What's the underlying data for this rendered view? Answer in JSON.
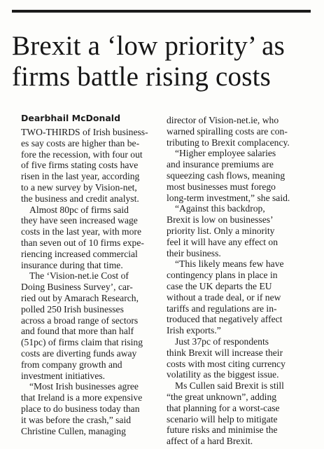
{
  "headline": "Brexit a ‘low priority’ as firms battle rising costs",
  "byline": "Dearbhail McDonald",
  "left_paragraphs": [
    "TWO-THIRDS of Irish business-\nes say costs are higher than be-\nfore the recession, with four out\nof five firms stating costs have\nrisen in the last year, according\nto a new survey by Vision-net,\nthe business and credit analyst.",
    "Almost 80pc of firms said\nthey have seen increased wage\ncosts in the last year, with more\nthan seven out of 10 firms expe-\nriencing increased commercial\ninsurance during that time.",
    "The ‘Vision-net.ie Cost of\nDoing Business Survey’, car-\nried out by Amarach Research,\npolled 250 Irish businesses\nacross a broad range of sectors\nand found that more than half\n(51pc) of firms claim that rising\ncosts are diverting funds away\nfrom company growth and\ninvestment initiatives.",
    "“Most Irish businesses agree\nthat Ireland is a more expensive\nplace to do business today than\nit was before the crash,” said\nChristine Cullen, managing"
  ],
  "right_paragraphs": [
    "director of Vision-net.ie, who\nwarned spiralling costs are con-\ntributing to Brexit complacency.",
    "“Higher employee salaries\nand insurance premiums are\nsqueezing cash flows, meaning\nmost businesses must forego\nlong-term investment,” she said.",
    "“Against this backdrop,\nBrexit is low on businesses’\npriority list. Only a minority\nfeel it will have any effect on\ntheir business.",
    "“This likely means few have\ncontingency plans in place in\ncase the UK departs the EU\nwithout a trade deal, or if new\ntariffs and regulations are in-\ntroduced that negatively affect\nIrish exports.”",
    "Just 37pc of respondents\nthink Brexit will increase their\ncosts with most citing currency\nvolatility as the biggest issue.",
    "Ms Cullen said Brexit is still\n“the great unknown”, adding\nthat planning for a worst-case\nscenario will help to mitigate\nfuture risks and minimise the\naffect of a hard Brexit."
  ]
}
